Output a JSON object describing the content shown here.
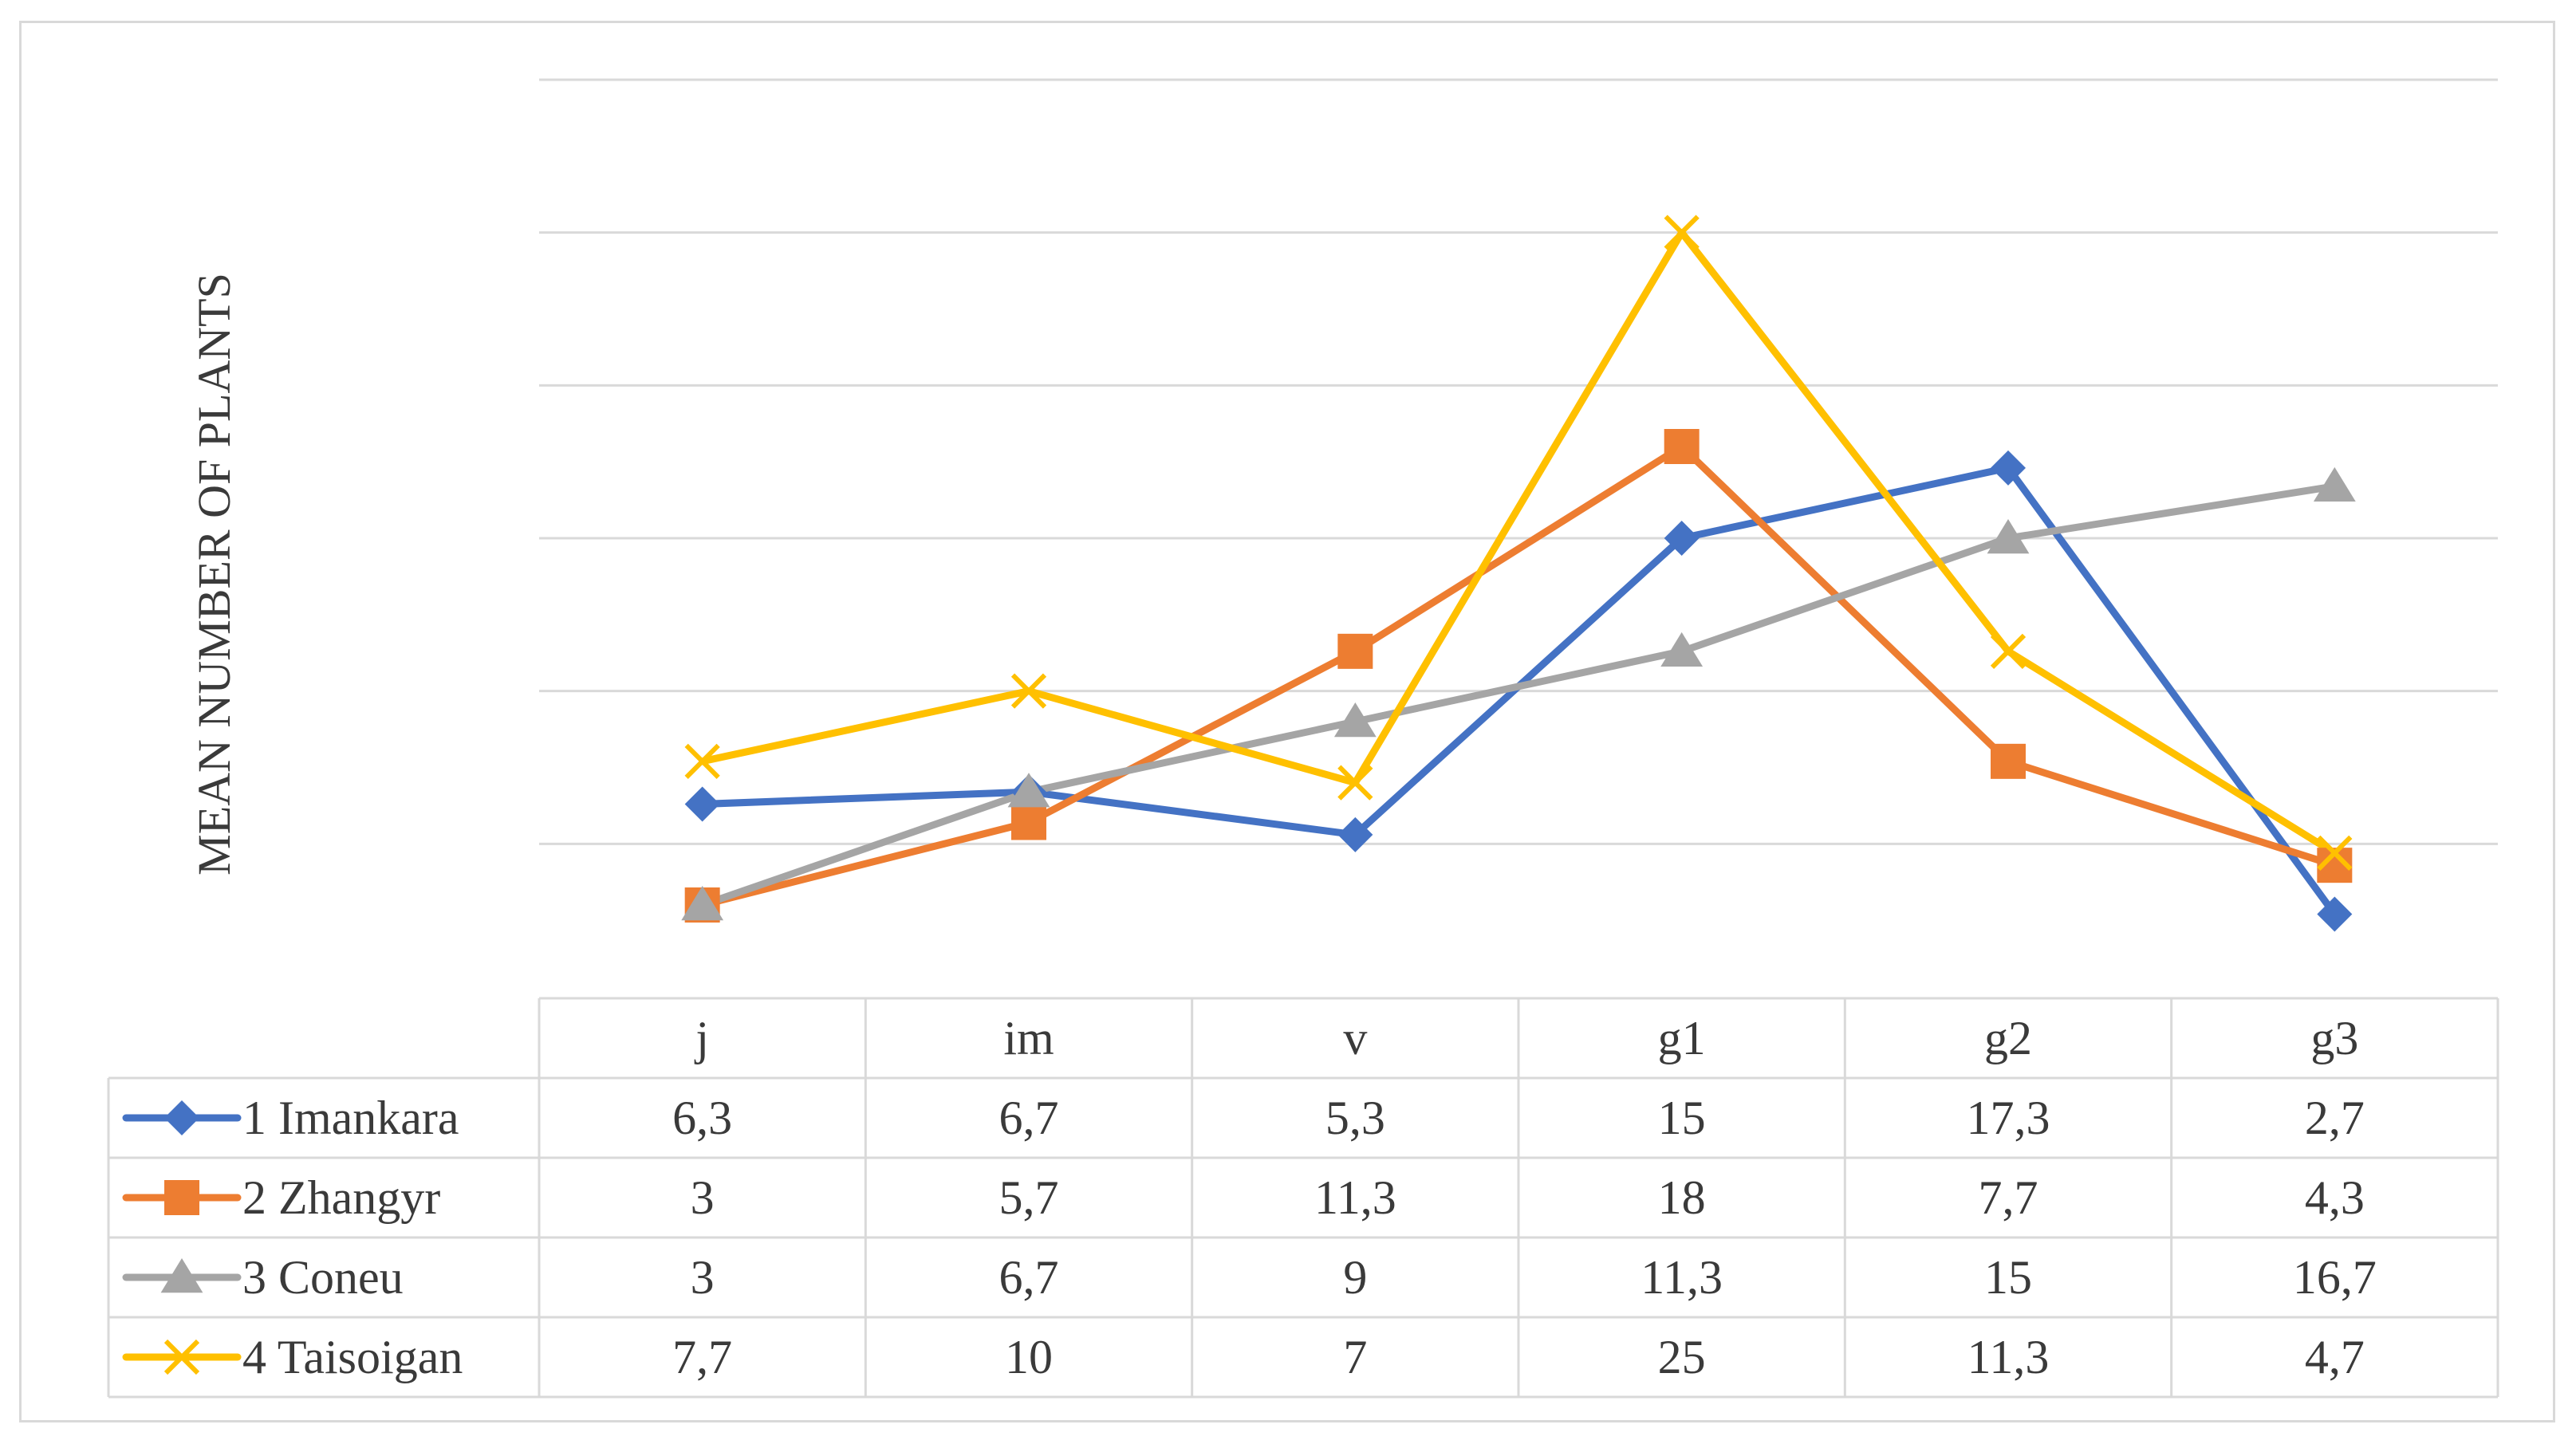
{
  "chart_data": {
    "type": "line",
    "ylabel": "MEAN NUMBER OF PLANTS",
    "ylim": [
      0,
      30
    ],
    "y_gridlines": [
      5,
      10,
      15,
      20,
      25,
      30
    ],
    "y_tick_labels_visible": false,
    "legend_placement": "data-table-below",
    "categories": [
      "j",
      "im",
      "v",
      "g1",
      "g2",
      "g3"
    ],
    "series": [
      {
        "name": "1 Imankara",
        "values": [
          "6,3",
          "6,7",
          "5,3",
          "15",
          "17,3",
          "2,7"
        ],
        "color": "#4472c4",
        "marker": "diamond"
      },
      {
        "name": "2 Zhangyr",
        "values": [
          "3",
          "5,7",
          "11,3",
          "18",
          "7,7",
          "4,3"
        ],
        "color": "#ed7d31",
        "marker": "square"
      },
      {
        "name": "3 Coneu",
        "values": [
          "3",
          "6,7",
          "9",
          "11,3",
          "15",
          "16,7"
        ],
        "color": "#a5a5a5",
        "marker": "triangle"
      },
      {
        "name": "4 Taisoigan",
        "values": [
          "7,7",
          "10",
          "7",
          "25",
          "11,3",
          "4,7"
        ],
        "color": "#ffc000",
        "marker": "x"
      }
    ]
  }
}
